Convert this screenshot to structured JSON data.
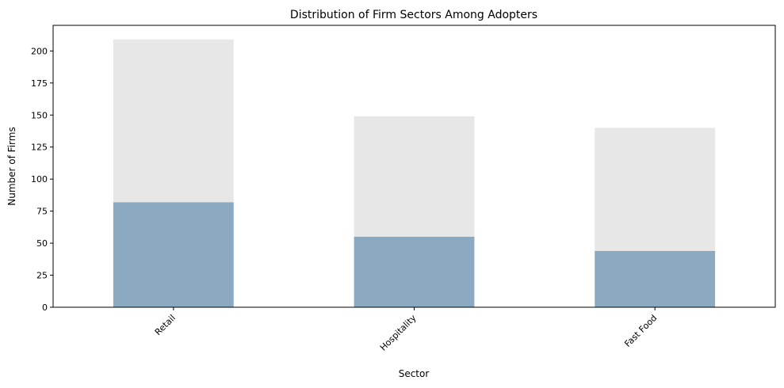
{
  "chart_data": {
    "type": "bar",
    "stacked": true,
    "title": "Distribution of Firm Sectors Among Adopters",
    "xlabel": "Sector",
    "ylabel": "Number of Firms",
    "categories": [
      "Retail",
      "Hospitality",
      "Fast Food"
    ],
    "series": [
      {
        "values": [
          82,
          55,
          44
        ],
        "color": "#8ca9c2"
      },
      {
        "values": [
          127,
          94,
          96
        ],
        "color": "#e7e7e7"
      }
    ],
    "ylim": [
      0,
      220
    ],
    "yticks": [
      0,
      25,
      50,
      75,
      100,
      125,
      150,
      175,
      200
    ],
    "grid": false,
    "legend": "none"
  }
}
